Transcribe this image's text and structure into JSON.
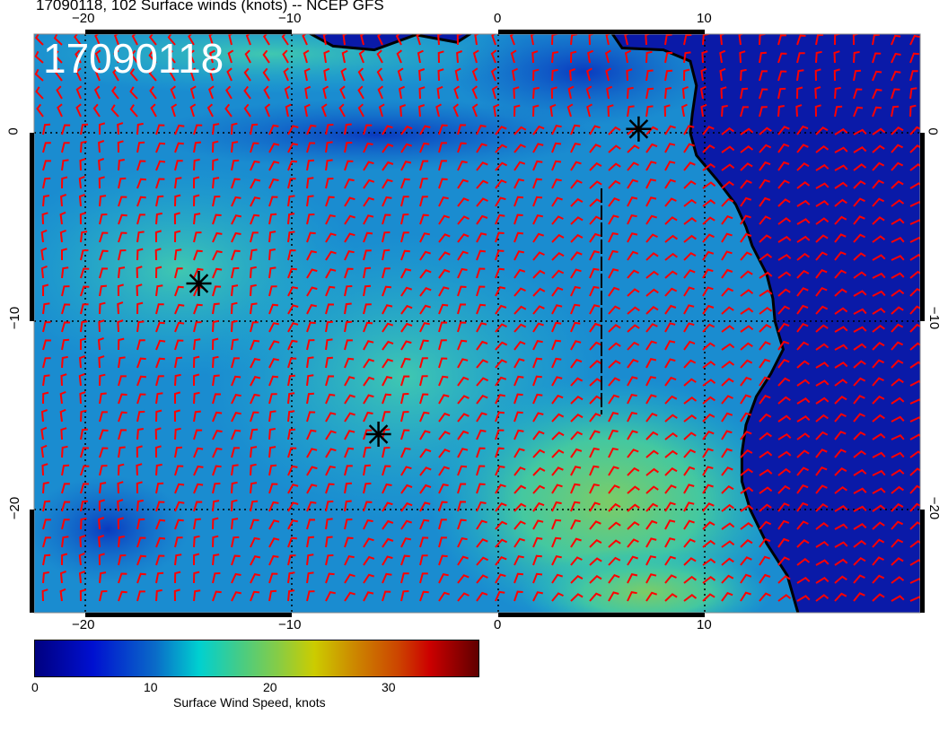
{
  "title": "17090118, 102 Surface winds (knots) -- NCEP GFS",
  "stamp": "17090118",
  "map": {
    "lon_range": [
      -22.5,
      20.4
    ],
    "lat_range": [
      -25.5,
      5.2
    ],
    "lon_ticks": [
      "−20",
      "−10",
      "0",
      "10"
    ],
    "lat_ticks": [
      "0",
      "−10",
      "−20"
    ],
    "markers": [
      {
        "lon": -14.5,
        "lat": -8.0
      },
      {
        "lon": -5.8,
        "lat": -16.0
      },
      {
        "lon": 6.8,
        "lat": 0.2
      }
    ],
    "land_color": "#0a1aa8",
    "barb_color": "#ff0000"
  },
  "colorbar": {
    "label": "Surface Wind Speed, knots",
    "ticks": [
      "0",
      "10",
      "20",
      "30"
    ],
    "range": [
      0,
      37
    ]
  }
}
